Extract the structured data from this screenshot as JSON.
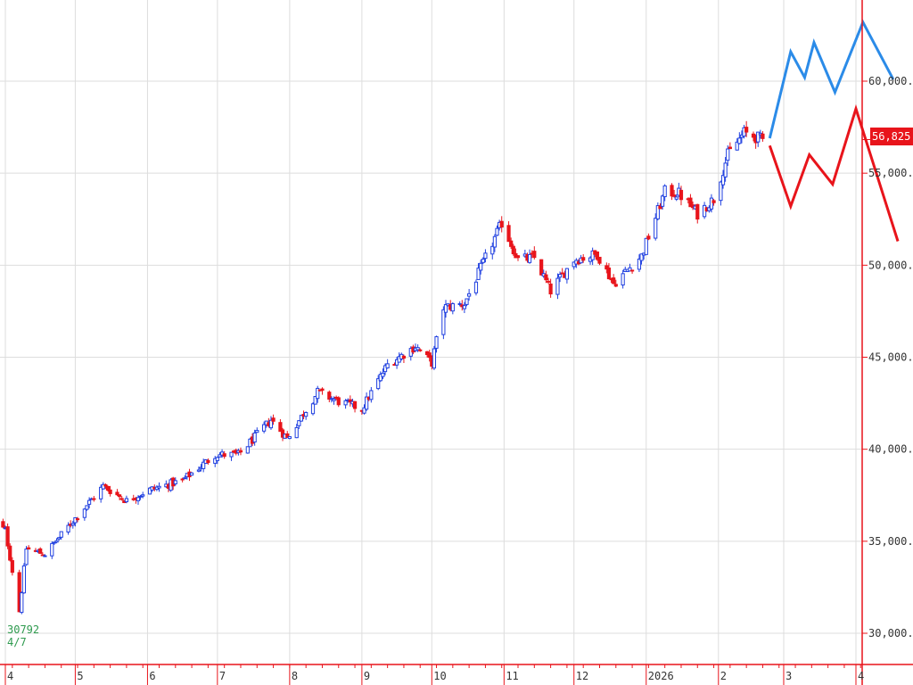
{
  "chart_data": {
    "type": "candlestick",
    "y_axis": {
      "min": 29500,
      "max": 64000,
      "ticks": [
        30000,
        35000,
        40000,
        45000,
        50000,
        55000,
        60000
      ],
      "tick_labels": [
        "30,000.",
        "35,000.",
        "40,000.",
        "45,000.",
        "50,000.",
        "55,000.",
        "60,000."
      ]
    },
    "x_axis": {
      "month_labels": [
        {
          "label": "4",
          "date": "2025-04-01"
        },
        {
          "label": "5",
          "date": "2025-05-01"
        },
        {
          "label": "6",
          "date": "2025-06-01"
        },
        {
          "label": "7",
          "date": "2025-07-01"
        },
        {
          "label": "8",
          "date": "2025-08-01"
        },
        {
          "label": "9",
          "date": "2025-09-01"
        },
        {
          "label": "10",
          "date": "2025-10-01"
        },
        {
          "label": "11",
          "date": "2025-11-01"
        },
        {
          "label": "12",
          "date": "2025-12-01"
        },
        {
          "label": "2026",
          "date": "2026-01-01"
        },
        {
          "label": "2",
          "date": "2026-02-01"
        },
        {
          "label": "3",
          "date": "2026-03-01"
        },
        {
          "label": "4",
          "date": "2026-04-01"
        }
      ]
    },
    "grid": true,
    "current_price": {
      "label": "56,825",
      "value": 56825
    },
    "low_annotation": {
      "value": "30792",
      "date_label": "4/7"
    },
    "anchors": [
      {
        "date": "2025-03-27",
        "close": 36000
      },
      {
        "date": "2025-04-01",
        "close": 35600
      },
      {
        "date": "2025-04-07",
        "close": 31200
      },
      {
        "date": "2025-04-10",
        "close": 34600
      },
      {
        "date": "2025-04-18",
        "close": 34300
      },
      {
        "date": "2025-04-30",
        "close": 36100
      },
      {
        "date": "2025-05-13",
        "close": 38000
      },
      {
        "date": "2025-05-23",
        "close": 37200
      },
      {
        "date": "2025-06-02",
        "close": 37800
      },
      {
        "date": "2025-06-16",
        "close": 38300
      },
      {
        "date": "2025-06-30",
        "close": 39700
      },
      {
        "date": "2025-07-10",
        "close": 39700
      },
      {
        "date": "2025-07-24",
        "close": 41600
      },
      {
        "date": "2025-07-31",
        "close": 40600
      },
      {
        "date": "2025-08-13",
        "close": 43100
      },
      {
        "date": "2025-08-22",
        "close": 42600
      },
      {
        "date": "2025-09-01",
        "close": 42200
      },
      {
        "date": "2025-09-12",
        "close": 44600
      },
      {
        "date": "2025-09-24",
        "close": 45600
      },
      {
        "date": "2025-10-01",
        "close": 44700
      },
      {
        "date": "2025-10-06",
        "close": 47700
      },
      {
        "date": "2025-10-15",
        "close": 47900
      },
      {
        "date": "2025-10-31",
        "close": 52300
      },
      {
        "date": "2025-11-07",
        "close": 50300
      },
      {
        "date": "2025-11-14",
        "close": 50400
      },
      {
        "date": "2025-11-21",
        "close": 48600
      },
      {
        "date": "2025-12-01",
        "close": 50300
      },
      {
        "date": "2025-12-11",
        "close": 50600
      },
      {
        "date": "2025-12-18",
        "close": 49000
      },
      {
        "date": "2025-12-30",
        "close": 50500
      },
      {
        "date": "2026-01-09",
        "close": 54000
      },
      {
        "date": "2026-01-15",
        "close": 53900
      },
      {
        "date": "2026-01-23",
        "close": 52800
      },
      {
        "date": "2026-01-30",
        "close": 53600
      },
      {
        "date": "2026-02-05",
        "close": 56000
      },
      {
        "date": "2026-02-12",
        "close": 57200
      },
      {
        "date": "2026-02-20",
        "close": 56825
      }
    ],
    "forecast_series": [
      {
        "color": "#2b8be8",
        "points": [
          {
            "date": "2026-02-23",
            "value": 56900
          },
          {
            "date": "2026-03-04",
            "value": 61600
          },
          {
            "date": "2026-03-10",
            "value": 60200
          },
          {
            "date": "2026-03-14",
            "value": 62100
          },
          {
            "date": "2026-03-23",
            "value": 59400
          },
          {
            "date": "2026-04-04",
            "value": 63200
          },
          {
            "date": "2026-04-17",
            "value": 60100
          }
        ]
      },
      {
        "color": "#e8141b",
        "points": [
          {
            "date": "2026-02-23",
            "value": 56500
          },
          {
            "date": "2026-03-04",
            "value": 53200
          },
          {
            "date": "2026-03-12",
            "value": 56000
          },
          {
            "date": "2026-03-22",
            "value": 54400
          },
          {
            "date": "2026-04-01",
            "value": 58500
          },
          {
            "date": "2026-04-19",
            "value": 51300
          }
        ]
      }
    ],
    "colors": {
      "up": "#1f3fe0",
      "down": "#e8141b",
      "axis": "#e8141b",
      "grid": "#dddddd",
      "low_text": "#2e9a4e"
    }
  }
}
